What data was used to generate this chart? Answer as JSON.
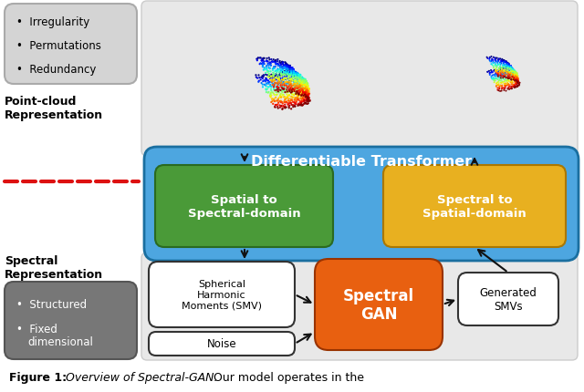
{
  "left_box1_bullets": [
    "Irregularity",
    "Permutations",
    "Redundancy"
  ],
  "left_label1": "Point-cloud\nRepresentation",
  "left_box2_bullets": [
    "Structured",
    "Fixed\ndimensional"
  ],
  "left_label2": "Spectral\nRepresentation",
  "diff_transformer_color": "#4da6e0",
  "diff_transformer_text": "Differentiable Transformer",
  "spatial_to_spectral_color": "#4a9a38",
  "spatial_to_spectral_text": "Spatial to\nSpectral-domain",
  "spectral_to_spatial_color": "#e8b020",
  "spectral_to_spatial_text": "Spectral to\nSpatial-domain",
  "spectral_gan_color": "#e86010",
  "spectral_gan_text": "Spectral\nGAN",
  "smv_box_text": "Spherical\nHarmonic\nMoments (SMV)",
  "noise_box_text": "Noise",
  "gen_smv_box_text": "Generated\nSMVs",
  "dashed_line_color": "#dd1111",
  "arrow_color": "#111111",
  "caption_bold": "Figure 1: ",
  "caption_italic": "Overview of Spectral-GAN.",
  "caption_normal": " Our model operates in the"
}
